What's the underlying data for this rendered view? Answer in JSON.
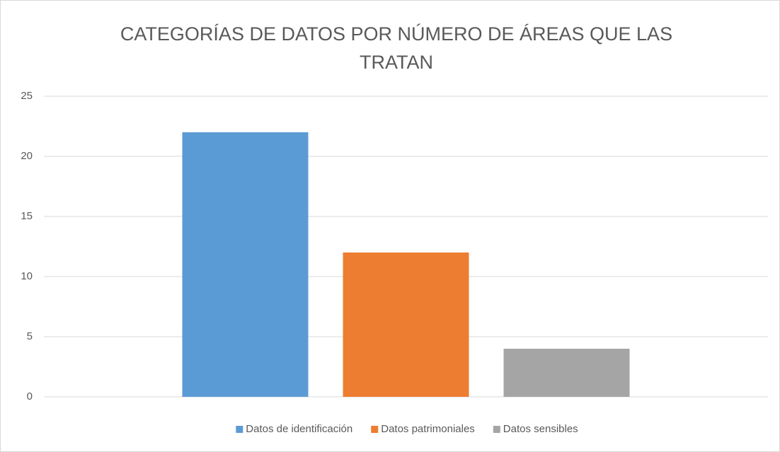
{
  "chart_data": {
    "type": "bar",
    "title": "CATEGORÍAS DE DATOS POR NÚMERO DE ÁREAS QUE LAS TRATAN",
    "categories": [
      null
    ],
    "series": [
      {
        "name": "Datos de identificación",
        "color": "#5b9bd5",
        "values": [
          22
        ]
      },
      {
        "name": "Datos patrimoniales",
        "color": "#ed7d31",
        "values": [
          12
        ]
      },
      {
        "name": "Datos sensibles",
        "color": "#a5a5a5",
        "values": [
          4
        ]
      }
    ],
    "ylim": [
      0,
      25
    ],
    "yticks": [
      0,
      5,
      10,
      15,
      20,
      25
    ],
    "grid": true,
    "legend": "bottom"
  }
}
